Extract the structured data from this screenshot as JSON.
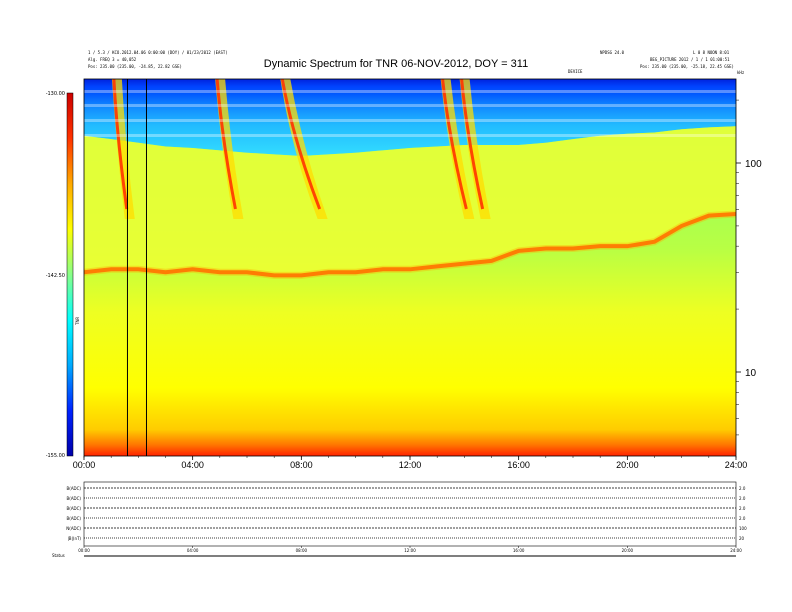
{
  "header": {
    "left_line1": "1 / 5.3 / KCO.2012.04.06 0:00:00 (DOY) / 01/23/2012 (EAST)",
    "left_line2": "Alg. FREQ 3 = 40,052",
    "left_line3": "Pos:   235.00 (235.00, -24.85, 22.82 GSE)",
    "right_line1": "NPDSG 24.0",
    "right_line2": "L 0 8 NOON 8:01",
    "right_line3": "BEG_PICTURE 2012 / 1 / 1 01:00:51",
    "right_line4": "Pos:   235.00 (235.00, -25.18, 22.45 GSE)",
    "center_tag": "DEVICE",
    "corner_tag": "kHz"
  },
  "chart_data": {
    "type": "heatmap",
    "title": "Dynamic Spectrum for TNR 06-NOV-2012, DOY = 311",
    "x_ticks": [
      "00:00",
      "04:00",
      "08:00",
      "12:00",
      "16:00",
      "20:00",
      "24:00"
    ],
    "y_right_ticks": [
      "100",
      "10"
    ],
    "y_scale": "log",
    "colorbar": {
      "ticks": [
        "-130.00",
        "-142.50",
        "-155.00"
      ],
      "label": "TNR",
      "range": [
        -155,
        -130
      ],
      "colors": [
        "#0000aa",
        "#0022ff",
        "#00aaff",
        "#00ffff",
        "#88ff88",
        "#ffff00",
        "#ffaa00",
        "#ff3300",
        "#cc0000"
      ]
    },
    "grid": false,
    "vertical_marker_hours": [
      1.6,
      2.3
    ],
    "plasma_line_hours": [
      0,
      1,
      2,
      3,
      4,
      5,
      6,
      7,
      8,
      9,
      10,
      11,
      12,
      13,
      14,
      15,
      16,
      17,
      18,
      19,
      20,
      21,
      22,
      23,
      24
    ],
    "plasma_line_khz": [
      30,
      31,
      31,
      30,
      31,
      30,
      30,
      29,
      29,
      30,
      30,
      31,
      31,
      32,
      33,
      34,
      38,
      39,
      39,
      40,
      40,
      42,
      50,
      56,
      57
    ],
    "cyan_edge_khz": [
      135,
      130,
      125,
      120,
      118,
      115,
      112,
      110,
      108,
      110,
      112,
      115,
      118,
      120,
      122,
      122,
      122,
      125,
      130,
      135,
      138,
      140,
      145,
      148,
      150
    ],
    "type3_bursts": [
      {
        "start_hour": 1.1,
        "drift_hours": 0.4
      },
      {
        "start_hour": 4.9,
        "drift_hours": 0.6
      },
      {
        "start_hour": 7.3,
        "drift_hours": 1.3
      },
      {
        "start_hour": 13.2,
        "drift_hours": 0.8
      },
      {
        "start_hour": 13.9,
        "drift_hours": 0.7
      }
    ]
  },
  "lower_panel": {
    "rows": [
      {
        "label": "B(ADC)",
        "right": "2.0"
      },
      {
        "label": "B(ADC)",
        "right": "2.0"
      },
      {
        "label": "B(ADC)",
        "right": "2.0"
      },
      {
        "label": "B(ADC)",
        "right": "2.0"
      },
      {
        "label": "N(ADC)",
        "right": "100"
      },
      {
        "label": "|B|(nT)",
        "right": "20"
      }
    ],
    "x_ticks": [
      "00:00",
      "04:00",
      "08:00",
      "12:00",
      "16:00",
      "20:00",
      "24:00"
    ],
    "status_label": "Status"
  }
}
